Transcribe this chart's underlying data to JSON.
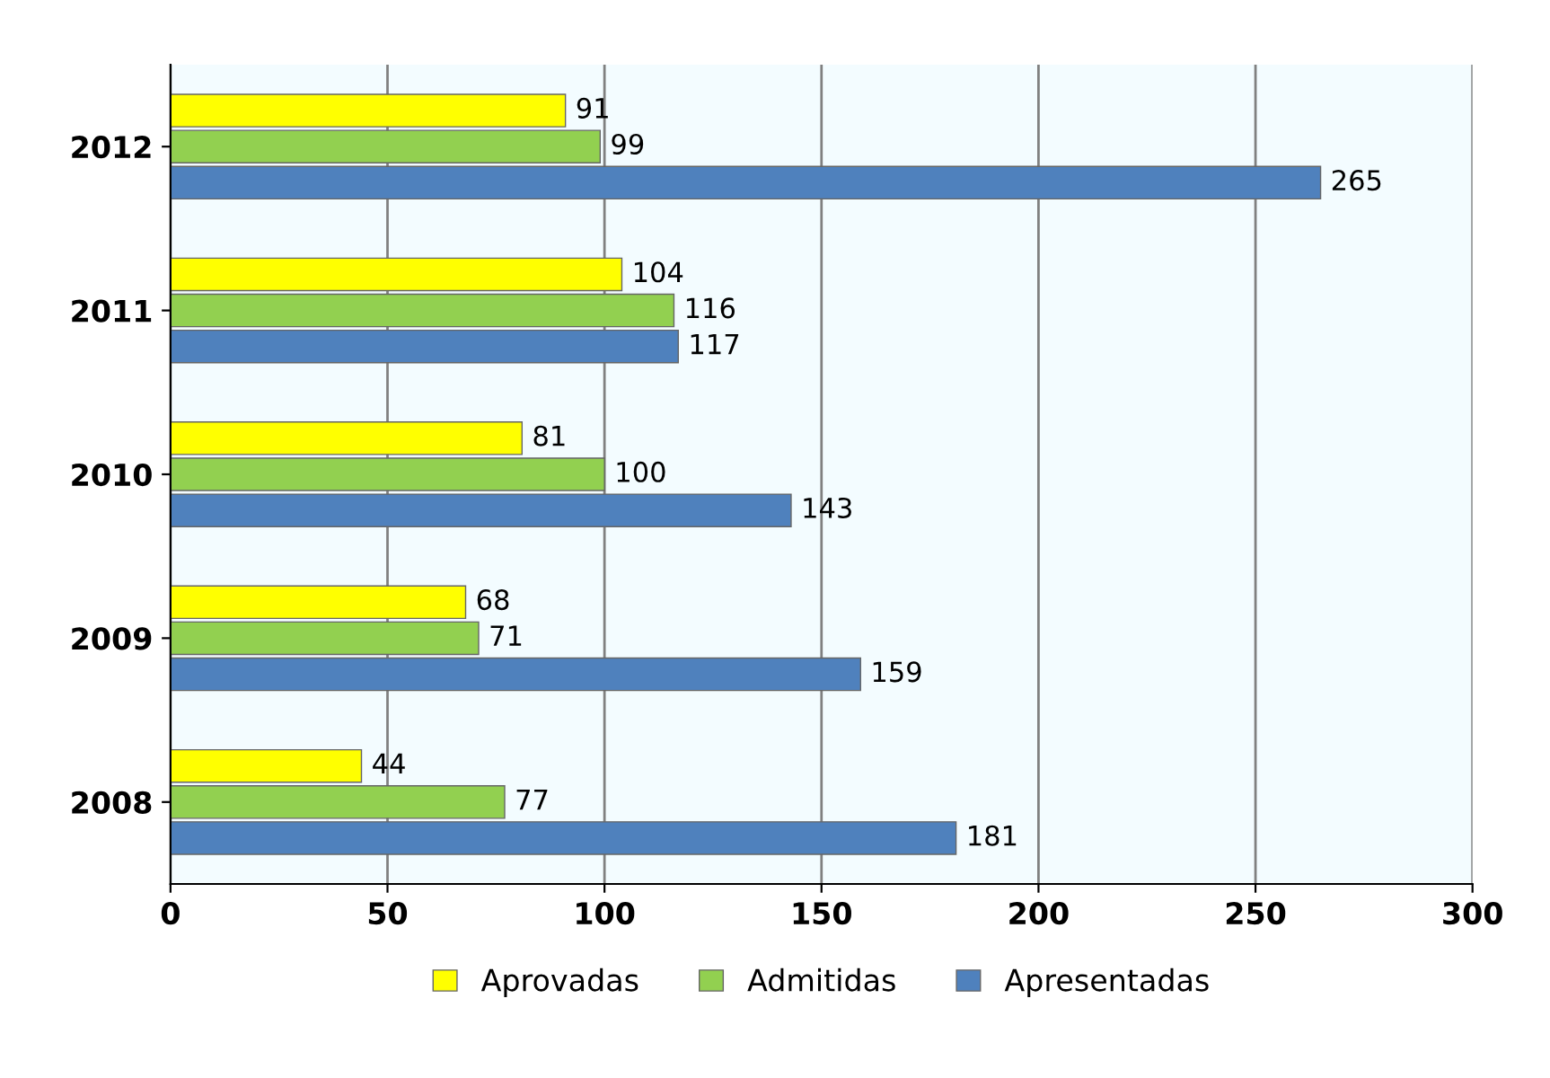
{
  "chart_data": {
    "type": "bar",
    "orientation": "horizontal",
    "categories": [
      "2012",
      "2011",
      "2010",
      "2009",
      "2008"
    ],
    "series": [
      {
        "name": "Aprovadas",
        "color": "#ffff00",
        "values": [
          91,
          104,
          81,
          68,
          44
        ]
      },
      {
        "name": "Admitidas",
        "color": "#92d050",
        "values": [
          99,
          116,
          100,
          71,
          77
        ]
      },
      {
        "name": "Apresentadas",
        "color": "#4f81bd",
        "values": [
          265,
          117,
          143,
          159,
          181
        ]
      }
    ],
    "xlim": [
      0,
      300
    ],
    "xticks": [
      0,
      50,
      100,
      150,
      200,
      250,
      300
    ],
    "grid": "x",
    "legend": "bottom",
    "data_labels": true
  }
}
